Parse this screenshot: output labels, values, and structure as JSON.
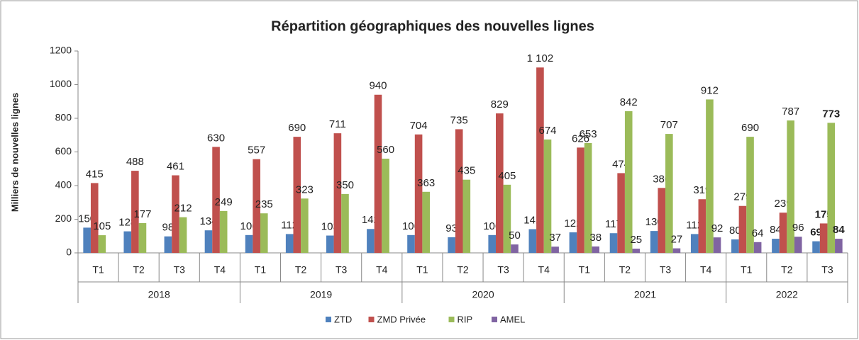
{
  "chart_data": {
    "type": "bar",
    "title": "Répartition géographiques des nouvelles lignes",
    "ylabel": "Milliers de nouvelles lignes",
    "groups": [
      {
        "name": "2018",
        "categories": [
          "T1",
          "T2",
          "T3",
          "T4"
        ]
      },
      {
        "name": "2019",
        "categories": [
          "T1",
          "T2",
          "T3",
          "T4"
        ]
      },
      {
        "name": "2020",
        "categories": [
          "T1",
          "T2",
          "T3",
          "T4"
        ]
      },
      {
        "name": "2021",
        "categories": [
          "T1",
          "T2",
          "T3",
          "T4"
        ]
      },
      {
        "name": "2022",
        "categories": [
          "T1",
          "T2",
          "T3"
        ]
      }
    ],
    "series": [
      {
        "name": "ZTD",
        "color": "#4f81bd",
        "values": [
          150,
          128,
          98,
          134,
          106,
          112,
          103,
          142,
          106,
          93,
          106,
          141,
          122,
          117,
          130,
          112,
          80,
          84,
          69
        ]
      },
      {
        "name": "ZMD Privée",
        "color": "#c0504d",
        "values": [
          415,
          488,
          461,
          630,
          557,
          690,
          711,
          940,
          704,
          735,
          829,
          1102,
          626,
          474,
          386,
          319,
          279,
          239,
          175
        ],
        "value_labels": [
          "415",
          "488",
          "461",
          "630",
          "557",
          "690",
          "711",
          "940",
          "704",
          "735",
          "829",
          "1 102",
          "626",
          "474",
          "386",
          "319",
          "279",
          "239",
          "175"
        ]
      },
      {
        "name": "RIP",
        "color": "#9bbb59",
        "values": [
          105,
          177,
          212,
          249,
          235,
          323,
          350,
          560,
          363,
          435,
          405,
          674,
          653,
          842,
          707,
          912,
          690,
          787,
          773
        ]
      },
      {
        "name": "AMEL",
        "color": "#8064a2",
        "values": [
          null,
          null,
          null,
          null,
          null,
          null,
          null,
          null,
          null,
          null,
          50,
          37,
          38,
          25,
          27,
          92,
          64,
          96,
          84
        ]
      }
    ],
    "ylim": [
      0,
      1200
    ],
    "yticks": [
      0,
      200,
      400,
      600,
      800,
      1000,
      1200
    ],
    "grid": false,
    "legend": "bottom"
  }
}
